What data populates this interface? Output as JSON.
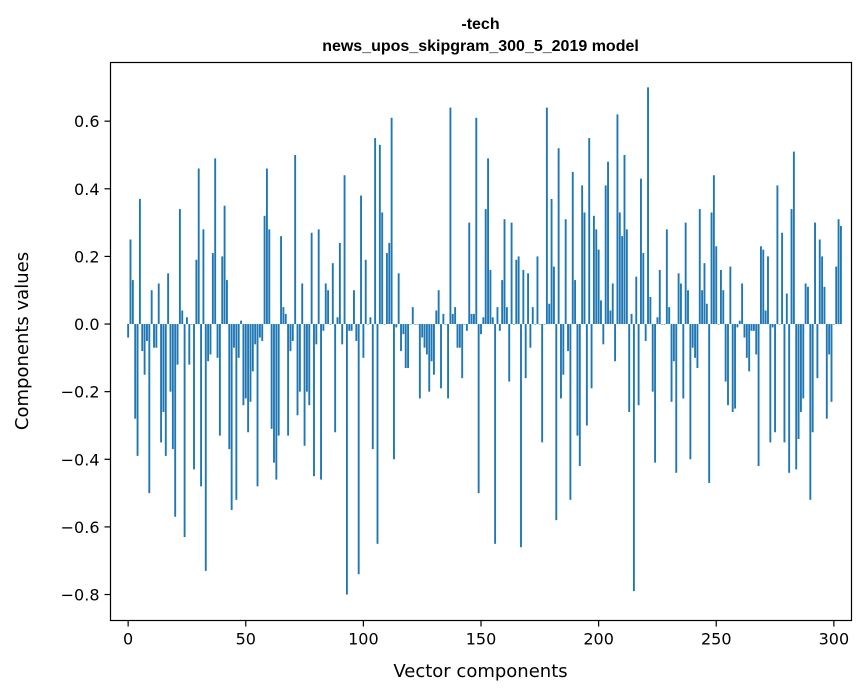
{
  "chart_data": {
    "type": "bar",
    "title_line1": "-tech",
    "title_line2": "news_upos_skipgram_300_5_2019 model",
    "xlabel": "Vector components",
    "ylabel": "Components values",
    "xlim": [
      -7.5,
      307.5
    ],
    "ylim": [
      -0.8768,
      0.7735
    ],
    "x_ticks": [
      0,
      50,
      100,
      150,
      200,
      250,
      300
    ],
    "x_tick_labels": [
      "0",
      "50",
      "100",
      "150",
      "200",
      "250",
      "300"
    ],
    "y_ticks": [
      -0.8,
      -0.6,
      -0.4,
      -0.2,
      0.0,
      0.2,
      0.4,
      0.6
    ],
    "y_tick_labels": [
      "−0.8",
      "−0.6",
      "−0.4",
      "−0.2",
      "0.0",
      "0.2",
      "0.4",
      "0.6"
    ],
    "bar_color": "#1f77b4",
    "bar_width": 0.8,
    "values": [
      -0.04,
      0.25,
      0.13,
      -0.28,
      -0.39,
      0.37,
      -0.08,
      -0.15,
      -0.05,
      -0.5,
      0.1,
      -0.07,
      -0.07,
      0.12,
      -0.35,
      -0.26,
      -0.39,
      0.15,
      -0.2,
      -0.37,
      -0.57,
      -0.12,
      0.34,
      0.04,
      -0.63,
      0.02,
      -0.12,
      0.0,
      -0.43,
      0.19,
      0.46,
      -0.48,
      0.28,
      -0.73,
      -0.11,
      -0.09,
      0.21,
      0.49,
      -0.1,
      -0.33,
      0.2,
      0.35,
      0.13,
      -0.37,
      -0.55,
      -0.07,
      -0.52,
      -0.1,
      0.01,
      -0.24,
      -0.22,
      -0.32,
      -0.23,
      -0.14,
      -0.06,
      -0.48,
      -0.04,
      -0.05,
      0.32,
      0.46,
      0.28,
      -0.31,
      -0.41,
      -0.46,
      -0.33,
      0.26,
      0.05,
      0.03,
      -0.33,
      -0.08,
      -0.05,
      0.5,
      -0.27,
      -0.2,
      0.12,
      -0.36,
      -0.2,
      -0.24,
      0.27,
      -0.45,
      -0.06,
      0.28,
      -0.46,
      -0.02,
      0.12,
      0.1,
      0.0,
      0.18,
      -0.32,
      0.02,
      0.24,
      -0.06,
      0.44,
      -0.8,
      -0.02,
      -0.02,
      0.1,
      -0.05,
      -0.74,
      0.38,
      -0.1,
      0.19,
      0.0,
      0.02,
      -0.37,
      0.55,
      -0.65,
      0.53,
      0.33,
      0.0,
      0.21,
      0.24,
      0.61,
      -0.4,
      -0.01,
      0.15,
      -0.08,
      -0.03,
      -0.13,
      -0.13,
      0.0,
      0.05,
      0.0,
      0.0,
      -0.22,
      -0.04,
      -0.07,
      -0.09,
      -0.2,
      -0.11,
      -0.15,
      0.04,
      0.1,
      -0.19,
      0.03,
      0.0,
      -0.22,
      0.64,
      0.03,
      0.05,
      -0.07,
      -0.07,
      -0.16,
      0.0,
      -0.02,
      0.3,
      0.03,
      0.03,
      0.61,
      -0.5,
      -0.03,
      0.02,
      0.34,
      0.49,
      0.16,
      0.02,
      -0.65,
      0.05,
      -0.02,
      0.13,
      0.31,
      0.05,
      -0.17,
      0.3,
      0.0,
      0.19,
      0.2,
      -0.66,
      0.16,
      -0.16,
      0.15,
      -0.07,
      0.05,
      0.0,
      0.2,
      0.0,
      -0.35,
      0.0,
      0.64,
      0.06,
      0.37,
      0.17,
      -0.58,
      0.52,
      -0.22,
      -0.15,
      0.31,
      -0.08,
      -0.52,
      0.45,
      0.13,
      -0.33,
      -0.42,
      0.41,
      0.33,
      -0.3,
      0.55,
      -0.19,
      0.32,
      0.28,
      0.22,
      0.07,
      -0.06,
      0.41,
      0.48,
      0.04,
      0.12,
      -0.11,
      0.62,
      0.33,
      0.26,
      0.5,
      0.28,
      -0.26,
      0.03,
      -0.79,
      0.14,
      -0.24,
      0.43,
      0.21,
      -0.05,
      0.7,
      0.08,
      -0.2,
      -0.41,
      0.02,
      0.16,
      0.0,
      0.0,
      0.28,
      0.05,
      -0.23,
      -0.11,
      -0.44,
      0.15,
      0.12,
      -0.22,
      0.3,
      0.1,
      -0.4,
      -0.07,
      -0.1,
      -0.13,
      0.34,
      0.1,
      0.18,
      0.06,
      -0.47,
      0.33,
      0.44,
      0.23,
      0.0,
      0.16,
      0.1,
      -0.17,
      -0.24,
      0.17,
      -0.26,
      -0.25,
      -0.01,
      0.01,
      0.12,
      -0.04,
      -0.1,
      -0.14,
      -0.02,
      -0.02,
      -0.09,
      -0.42,
      0.23,
      0.22,
      0.04,
      0.2,
      -0.35,
      -0.01,
      -0.32,
      0.41,
      0.0,
      0.27,
      -0.35,
      0.09,
      -0.44,
      0.34,
      0.51,
      -0.43,
      -0.34,
      -0.26,
      -0.22,
      0.12,
      0.11,
      -0.52,
      -0.32,
      0.3,
      -0.16,
      0.25,
      0.2,
      0.11,
      -0.28,
      -0.09,
      -0.23,
      0.0,
      0.17,
      0.31,
      0.29
    ]
  }
}
